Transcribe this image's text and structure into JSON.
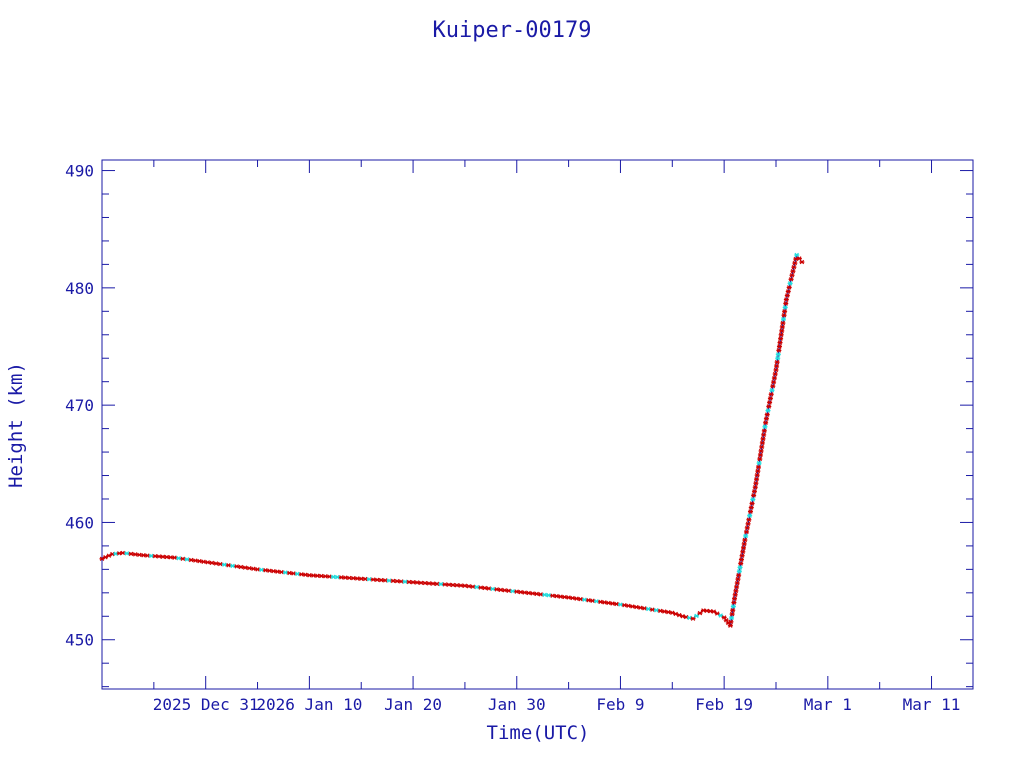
{
  "chart_data": {
    "type": "line",
    "title": "Kuiper-00179",
    "xlabel": "Time(UTC)",
    "ylabel": "Height (km)",
    "x_tick_labels": [
      "2025 Dec 31",
      "2026 Jan 10",
      "Jan 20",
      "Jan 30",
      "Feb  9",
      "Feb 19",
      "Mar  1",
      "Mar 11"
    ],
    "x_ticks": [
      "2025-12-31",
      "2026-01-10",
      "2026-01-20",
      "2026-01-30",
      "2026-02-09",
      "2026-02-19",
      "2026-03-01",
      "2026-03-11"
    ],
    "x_range": [
      "2025-12-21",
      "2026-03-15"
    ],
    "y_ticks": [
      450,
      460,
      470,
      480,
      490
    ],
    "y_tick_labels": [
      "450",
      "460",
      "470",
      "480",
      "490"
    ],
    "ylim": [
      445.8,
      490.9
    ],
    "grid": false,
    "colors": {
      "axis": "#1a1aa6",
      "line": "#1a1aa6",
      "marker_primary": "#cc0000",
      "marker_secondary": "#22dddd"
    },
    "series": [
      {
        "x": [
          "2025-12-21",
          "2025-12-22",
          "2025-12-23",
          "2025-12-25",
          "2025-12-28",
          "2026-01-01",
          "2026-01-05",
          "2026-01-10",
          "2026-01-15",
          "2026-01-20",
          "2026-01-25",
          "2026-01-30",
          "2026-02-04",
          "2026-02-09",
          "2026-02-14",
          "2026-02-15",
          "2026-02-16",
          "2026-02-17",
          "2026-02-18",
          "2026-02-19",
          "2026-02-19.6",
          "2026-02-20",
          "2026-02-21",
          "2026-02-22",
          "2026-02-23",
          "2026-02-24",
          "2026-02-25",
          "2026-02-26",
          "2026-02-26.5"
        ],
        "y": [
          456.9,
          457.3,
          457.4,
          457.2,
          457.0,
          456.5,
          456.0,
          455.5,
          455.2,
          454.9,
          454.6,
          454.1,
          453.6,
          453.0,
          452.3,
          452.0,
          451.8,
          452.5,
          452.4,
          451.9,
          451.2,
          453.5,
          458.5,
          463.0,
          468.5,
          473.0,
          479.0,
          482.8,
          482.2
        ]
      }
    ]
  }
}
